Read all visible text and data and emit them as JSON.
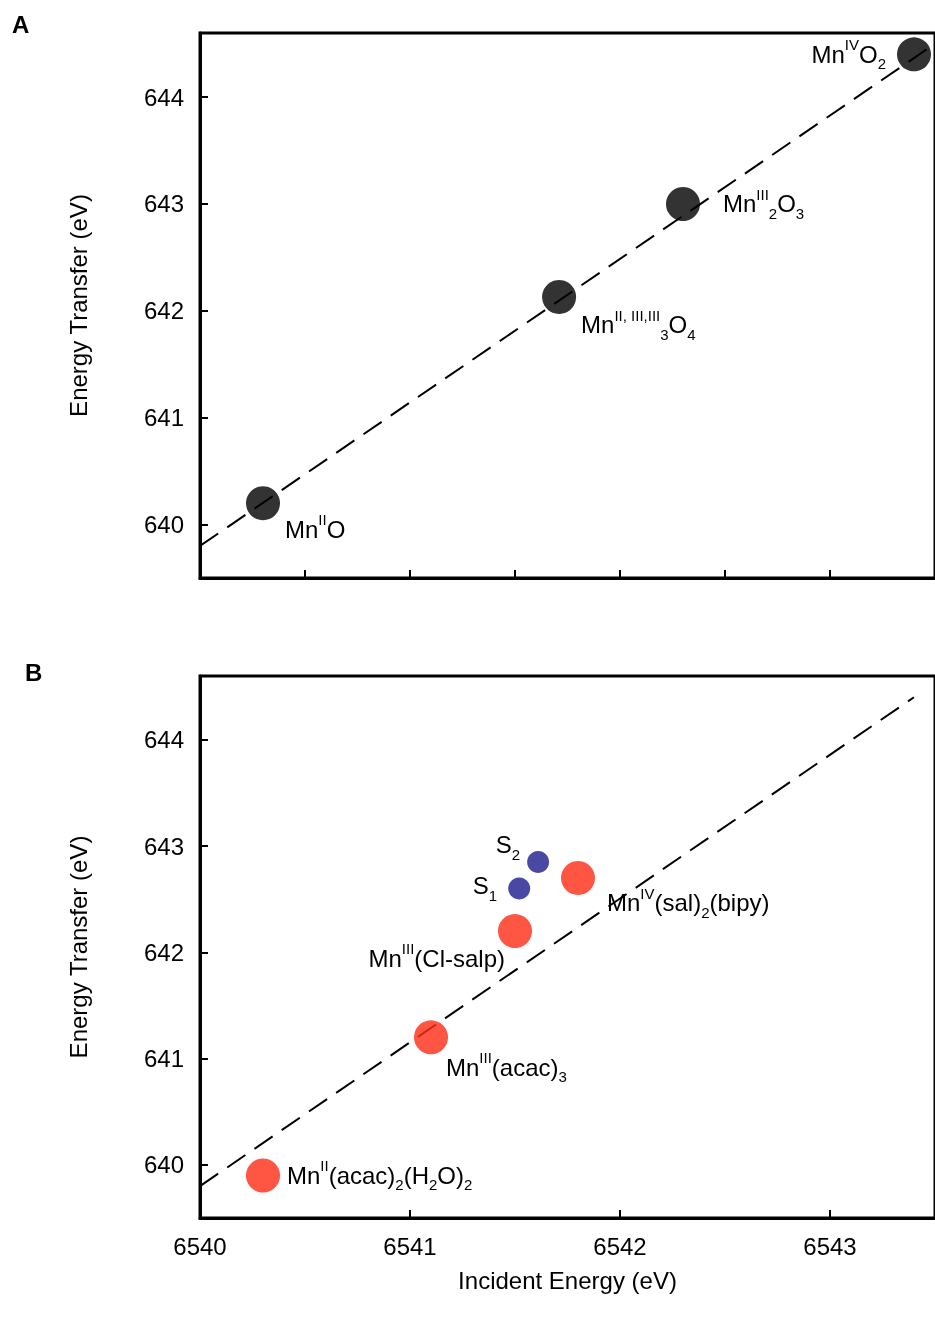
{
  "chart_data": [
    {
      "type": "scatter",
      "title": "A",
      "ylabel": "Energy Transfer (eV)",
      "xlim": [
        6540,
        6543.5
      ],
      "ylim": [
        639.5,
        644.6
      ],
      "xticks": [
        6540.5,
        6541,
        6541.5,
        6542,
        6542.5,
        6543
      ],
      "yticks": [
        640,
        641,
        642,
        643,
        644
      ],
      "tick_labels": "y",
      "grid": false,
      "series": [
        {
          "color": "#000000",
          "marker": "circle",
          "x": [
            6540.3,
            6541.71,
            6542.3,
            6543.4
          ],
          "values": [
            640.2,
            642.13,
            643.0,
            644.4
          ]
        },
        {
          "type": "line",
          "color": "#000000",
          "marker": "none",
          "line_style": "dashed",
          "x": [
            6540,
            6543.5
          ],
          "values": [
            639.8,
            644.5
          ]
        }
      ],
      "annotations": [
        {
          "text": "Mn$^{II}$O",
          "x": 6540.3,
          "y": 640.2
        },
        {
          "text": "Mn$^{II, III,III}$$_{3}$O$_{4}$",
          "x": 6541.71,
          "y": 642.13
        },
        {
          "text": "Mn$^{III}$$_{2}$O$_{3}$",
          "x": 6542.3,
          "y": 643.0
        },
        {
          "text": "Mn$^{IV}$O$_{2}$",
          "x": 6543.4,
          "y": 644.4
        }
      ]
    },
    {
      "type": "scatter",
      "title": "B",
      "xlabel": "Incident Energy (eV)",
      "ylabel": "Energy Transfer (eV)",
      "xlim": [
        6540,
        6543.5
      ],
      "ylim": [
        639.5,
        644.6
      ],
      "xticks": [
        6540,
        6541,
        6542,
        6543
      ],
      "yticks": [
        640,
        641,
        642,
        643,
        644
      ],
      "grid": false,
      "series": [
        {
          "color": "#ff2a14",
          "marker": "circle",
          "x": [
            6540.3,
            6541.1,
            6541.5,
            6541.8
          ],
          "values": [
            639.9,
            641.2,
            642.2,
            642.7
          ]
        },
        {
          "color": "#1c1c8c",
          "marker": "circle",
          "x": [
            6541.52,
            6541.61
          ],
          "values": [
            642.6,
            642.85
          ]
        },
        {
          "type": "line",
          "color": "#000000",
          "marker": "none",
          "line_style": "dashed",
          "x": [
            6540,
            6543.4
          ],
          "values": [
            639.8,
            644.4
          ]
        }
      ],
      "annotations": [
        {
          "text": "Mn$^{II}$(acac)$_{2}$(H$_{2}$O)$_{2}$",
          "x": 6540.3,
          "y": 639.9
        },
        {
          "text": "Mn$^{III}$(acac)$_{3}$",
          "x": 6541.1,
          "y": 641.2
        },
        {
          "text": "Mn$^{III}$(Cl-salp)",
          "x": 6541.5,
          "y": 642.2
        },
        {
          "text": "Mn$^{IV}$(sal)$_{2}$(bipy)",
          "x": 6541.8,
          "y": 642.7
        },
        {
          "text": "S$_{1}$",
          "x": 6541.52,
          "y": 642.6
        },
        {
          "text": "S$_{2}$",
          "x": 6541.61,
          "y": 642.85
        }
      ]
    }
  ]
}
